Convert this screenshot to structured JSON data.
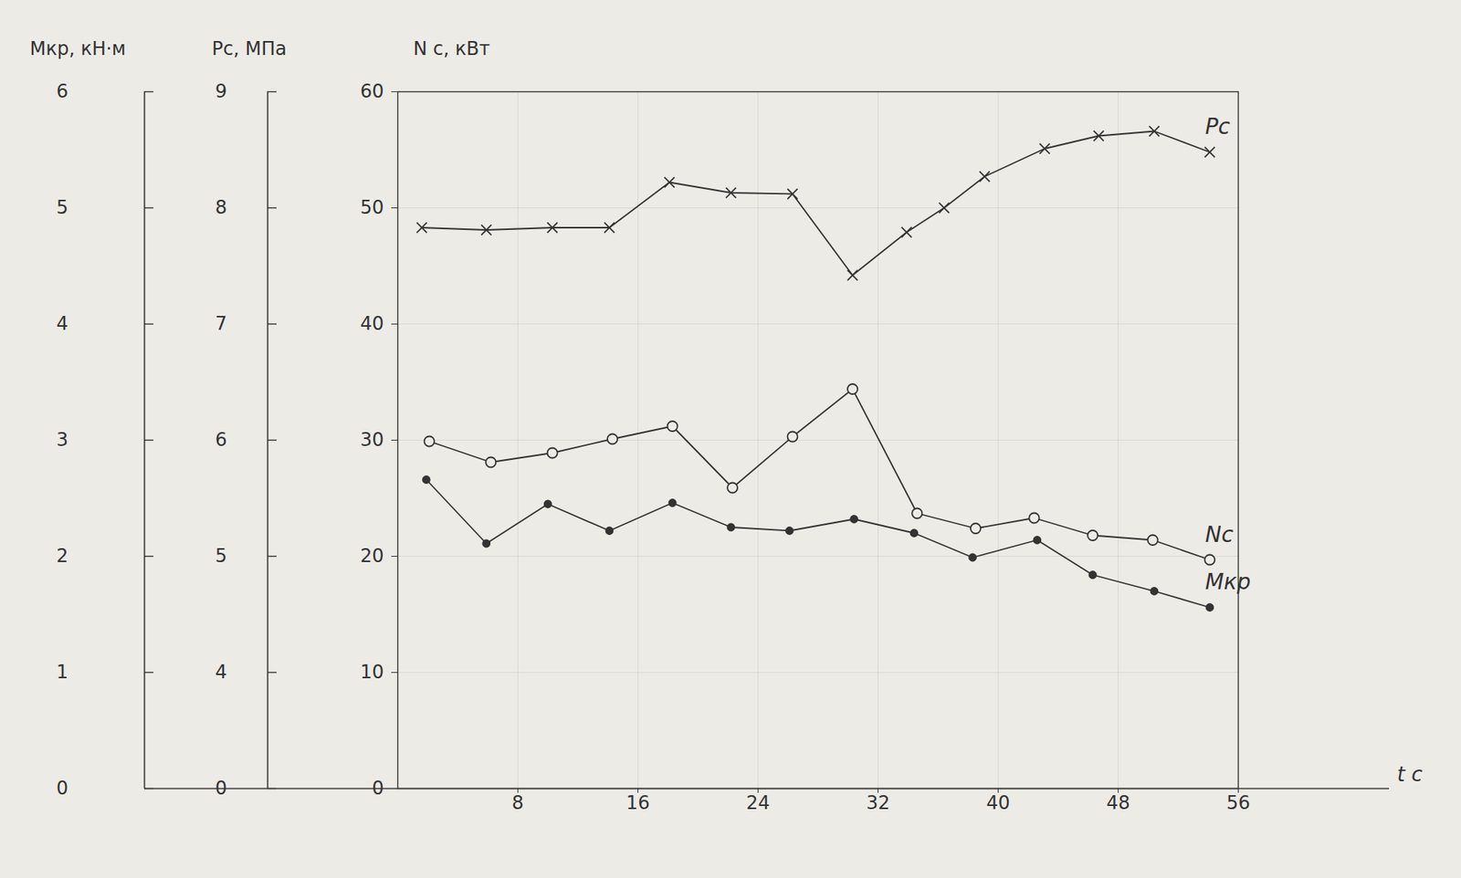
{
  "chart_data": {
    "type": "line",
    "xlabel": "t с",
    "ylabel": "N с, кВт",
    "y2label": "Мкр, кН·м",
    "y3label": "Рс, МПа",
    "xlim": [
      0,
      56
    ],
    "xticks": [
      8,
      16,
      24,
      32,
      40,
      48,
      56
    ],
    "ylim": [
      0,
      60
    ],
    "yticks": [
      0,
      10,
      20,
      30,
      40,
      50,
      60
    ],
    "y2lim": [
      0,
      6
    ],
    "y2ticks": [
      0,
      1,
      2,
      3,
      4,
      5,
      6
    ],
    "y3lim": [
      3,
      9
    ],
    "y3ticks": [
      {
        "value": 3,
        "label": "0"
      },
      4,
      5,
      6,
      7,
      8,
      9
    ],
    "grid": true,
    "series": [
      {
        "name": "Рс",
        "axis": "y3",
        "color": "#333333",
        "marker": "x",
        "x": [
          1.6,
          5.9,
          10.3,
          14.1,
          18.1,
          22.2,
          26.3,
          30.3,
          33.9,
          36.4,
          39.1,
          43.1,
          46.7,
          50.4,
          54.1
        ],
        "values": [
          7.83,
          7.81,
          7.83,
          7.83,
          8.22,
          8.13,
          8.12,
          7.42,
          7.79,
          8.0,
          8.27,
          8.51,
          8.62,
          8.66,
          8.48
        ]
      },
      {
        "name": "Nс",
        "color": "#333333",
        "marker": "circle",
        "x": [
          2.1,
          6.2,
          10.3,
          14.3,
          18.3,
          22.3,
          26.3,
          30.3,
          34.6,
          38.5,
          42.4,
          46.3,
          50.3,
          54.1
        ],
        "values": [
          29.9,
          28.1,
          28.9,
          30.1,
          31.2,
          25.9,
          30.3,
          34.4,
          23.7,
          22.4,
          23.3,
          21.8,
          21.4,
          19.7
        ]
      },
      {
        "name": "Мкр",
        "axis": "y2",
        "color": "#333333",
        "marker": "dot",
        "x": [
          1.9,
          5.9,
          10.0,
          14.1,
          18.3,
          22.2,
          26.1,
          30.4,
          34.4,
          38.3,
          42.6,
          46.3,
          50.4,
          54.1
        ],
        "values": [
          2.66,
          2.11,
          2.45,
          2.22,
          2.46,
          2.25,
          2.22,
          2.32,
          2.2,
          1.99,
          2.14,
          1.84,
          1.7,
          1.56
        ]
      }
    ]
  }
}
